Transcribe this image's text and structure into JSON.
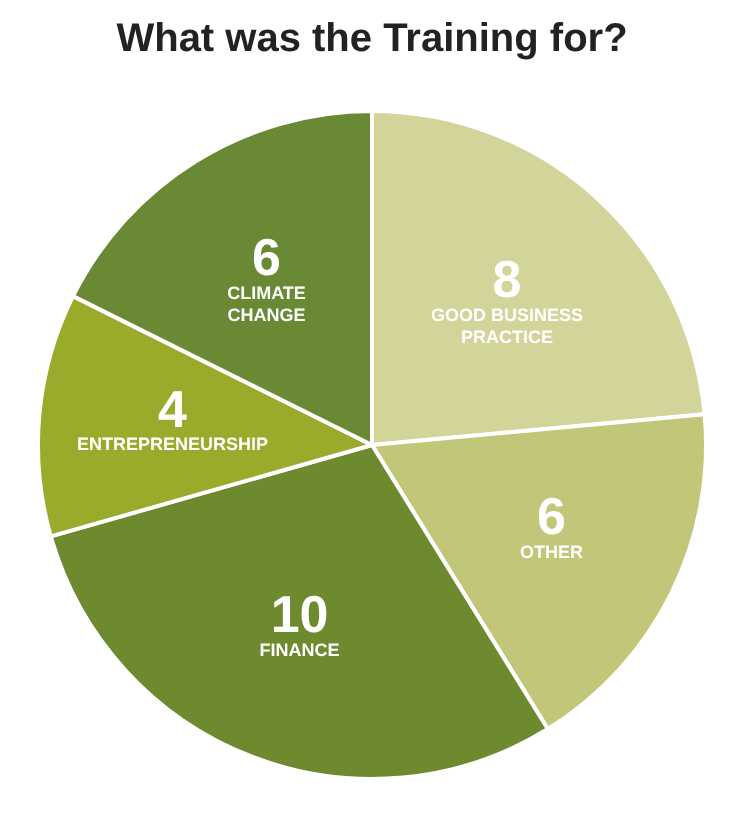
{
  "chart_data": {
    "type": "pie",
    "title": "What was the Training for?",
    "categories": [
      "GOOD BUSINESS PRACTICE",
      "OTHER",
      "FINANCE",
      "ENTREPRENEURSHIP",
      "CLIMATE CHANGE"
    ],
    "values": [
      8,
      6,
      10,
      4,
      6
    ],
    "colors": [
      "#d3d49a",
      "#c2c679",
      "#6d8a2f",
      "#9aab2c",
      "#6a8934"
    ],
    "data_labels": true,
    "legend": false
  }
}
